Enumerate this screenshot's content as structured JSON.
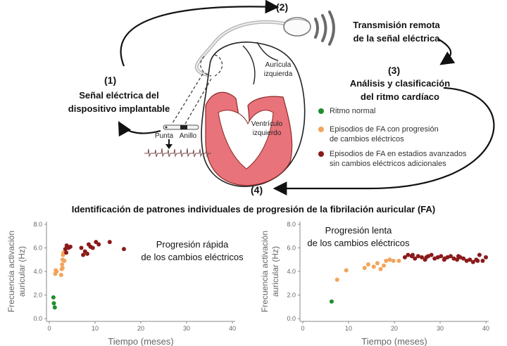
{
  "steps": {
    "s1": {
      "num": "(1)",
      "title_line1": "Señal eléctrica del",
      "title_line2": "dispositivo implantable"
    },
    "s2": {
      "num": "(2)",
      "title_line1": "Transmisión remota",
      "title_line2": "de la señal eléctrica"
    },
    "s3": {
      "num": "(3)",
      "title_line1": "Análisis y clasificación",
      "title_line2": "del ritmo cardíaco"
    },
    "s4": {
      "num": "(4)"
    }
  },
  "heart_labels": {
    "atrium_line1": "Aurícula",
    "atrium_line2": "izquierda",
    "ventricle_line1": "Ventrículo",
    "ventricle_line2": "izquierdo",
    "tip": "Punta",
    "ring": "Anillo"
  },
  "legend": [
    {
      "color": "#1f8f2a",
      "line1": "Ritmo normal",
      "line2": ""
    },
    {
      "color": "#f2a45c",
      "line1": "Episodios de FA con progresión",
      "line2": "de cambios eléctricos"
    },
    {
      "color": "#8b1a1a",
      "line1": "Episodios de FA en estadios avanzados",
      "line2": "sin cambios eléctricos adicionales"
    }
  ],
  "section_title": "Identificación de patrones individuales de progresión de la fibrilación auricular (FA)",
  "colors": {
    "normal": "#1f8f2a",
    "progression": "#f2a45c",
    "advanced": "#8b1a1a",
    "muscle": "#e9737a"
  },
  "chart_data": [
    {
      "type": "scatter",
      "title_line1": "Progresión rápida",
      "title_line2": "de los cambios eléctricos",
      "xlabel": "Tiempo (meses)",
      "ylabel_line1": "Frecuencia activación",
      "ylabel_line2": "auricular (Hz)",
      "xlim": [
        0,
        40
      ],
      "ylim": [
        0,
        8
      ],
      "xticks": [
        0,
        10,
        20,
        30,
        40
      ],
      "yticks": [
        "0.0",
        "2.0",
        "4.0",
        "6.0",
        "8.0"
      ],
      "series": [
        {
          "name": "Ritmo normal",
          "color_key": "normal",
          "x": [
            0.9,
            1.0,
            1.2
          ],
          "y": [
            1.8,
            1.3,
            0.95
          ]
        },
        {
          "name": "Progresión",
          "color_key": "progression",
          "x": [
            1.3,
            1.4,
            1.6,
            2.6,
            2.7,
            2.8,
            2.9,
            3.0,
            3.1,
            3.3,
            2.9
          ],
          "y": [
            3.8,
            4.1,
            4.0,
            3.7,
            4.2,
            4.6,
            5.0,
            5.4,
            5.6,
            4.9,
            4.3
          ]
        },
        {
          "name": "Avanzado",
          "color_key": "advanced",
          "x": [
            3.5,
            3.8,
            4.2,
            4.6,
            3.7,
            7.0,
            7.4,
            7.8,
            8.3,
            8.6,
            9.0,
            9.5,
            10.2,
            10.8,
            13.2,
            16.3
          ],
          "y": [
            5.9,
            6.2,
            6.0,
            6.1,
            5.6,
            6.0,
            5.4,
            5.7,
            5.5,
            6.3,
            6.1,
            6.0,
            6.5,
            6.3,
            6.5,
            5.9
          ]
        }
      ]
    },
    {
      "type": "scatter",
      "title_line1": "Progresión lenta",
      "title_line2": "de los cambios eléctricos",
      "xlabel": "Tiempo (meses)",
      "ylabel_line1": "Frecuencia activación",
      "ylabel_line2": "auricular (Hz)",
      "xlim": [
        0,
        40
      ],
      "ylim": [
        0,
        8
      ],
      "xticks": [
        0,
        10,
        20,
        30,
        40
      ],
      "yticks": [
        "0.0",
        "2.0",
        "4.0",
        "6.0",
        "8.0"
      ],
      "series": [
        {
          "name": "Ritmo normal",
          "color_key": "normal",
          "x": [
            6.3
          ],
          "y": [
            1.45
          ]
        },
        {
          "name": "Progresión",
          "color_key": "progression",
          "x": [
            7.5,
            9.5,
            13.5,
            14.3,
            15.5,
            16.3,
            17.0,
            17.7,
            18.2,
            19.0,
            19.8,
            21.0
          ],
          "y": [
            3.3,
            4.1,
            4.3,
            4.6,
            4.4,
            4.7,
            4.2,
            4.5,
            4.9,
            5.0,
            4.9,
            4.9
          ]
        },
        {
          "name": "Avanzado",
          "color_key": "advanced",
          "x": [
            22.3,
            23.0,
            23.8,
            24.5,
            25.2,
            26.0,
            26.7,
            27.4,
            28.1,
            28.8,
            29.5,
            30.2,
            30.9,
            31.6,
            32.3,
            33.0,
            33.7,
            34.4,
            35.1,
            35.8,
            36.5,
            37.2,
            37.9,
            38.6,
            39.3,
            40.0,
            24.0,
            27.0,
            31.0,
            34.0,
            38.2
          ],
          "y": [
            5.2,
            5.4,
            5.3,
            5.1,
            5.3,
            5.2,
            5.0,
            5.3,
            5.4,
            5.1,
            5.2,
            5.3,
            5.0,
            5.2,
            5.3,
            5.1,
            5.0,
            5.2,
            5.1,
            4.9,
            5.0,
            4.8,
            5.0,
            5.4,
            4.9,
            5.2,
            5.4,
            5.2,
            5.1,
            5.3,
            4.9
          ]
        }
      ]
    }
  ]
}
